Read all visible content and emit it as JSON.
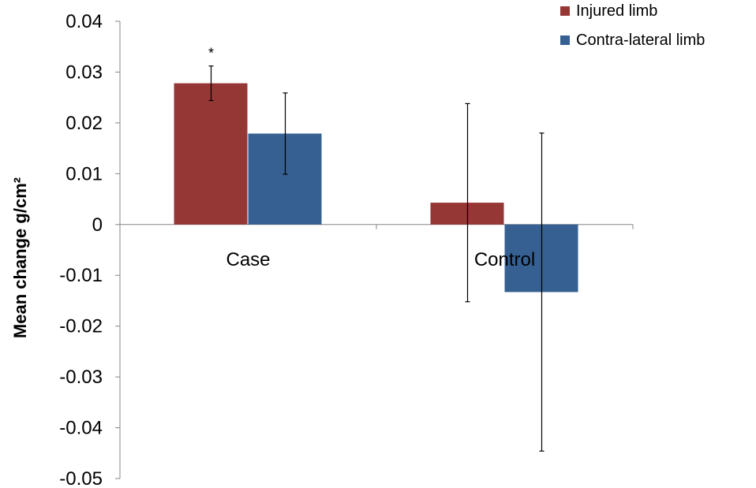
{
  "chart_data": {
    "type": "bar",
    "title": "",
    "xlabel": "",
    "ylabel": "Mean change g/cm²",
    "categories": [
      "Case",
      "Control"
    ],
    "series": [
      {
        "name": "Injured limb",
        "color": "#953735",
        "values": [
          0.0278,
          0.0043
        ],
        "error": [
          0.0034,
          0.0195
        ]
      },
      {
        "name": "Contra-lateral limb",
        "color": "#366092",
        "values": [
          0.0179,
          -0.0133
        ],
        "error": [
          0.008,
          0.0313
        ]
      }
    ],
    "ylim": [
      -0.05,
      0.04
    ],
    "yticks": [
      0.04,
      0.03,
      0.02,
      0.01,
      0,
      -0.01,
      -0.02,
      -0.03,
      -0.04,
      -0.05
    ],
    "ytick_labels": [
      "0.04",
      "0.03",
      "0.02",
      "0.01",
      "0",
      "-0.01",
      "-0.02",
      "-0.03",
      "-0.04",
      "-0.05"
    ],
    "annotations": [
      {
        "text": "*",
        "category": "Case",
        "series": "Injured limb"
      }
    ],
    "grid": false,
    "legend_position": "top-right"
  }
}
